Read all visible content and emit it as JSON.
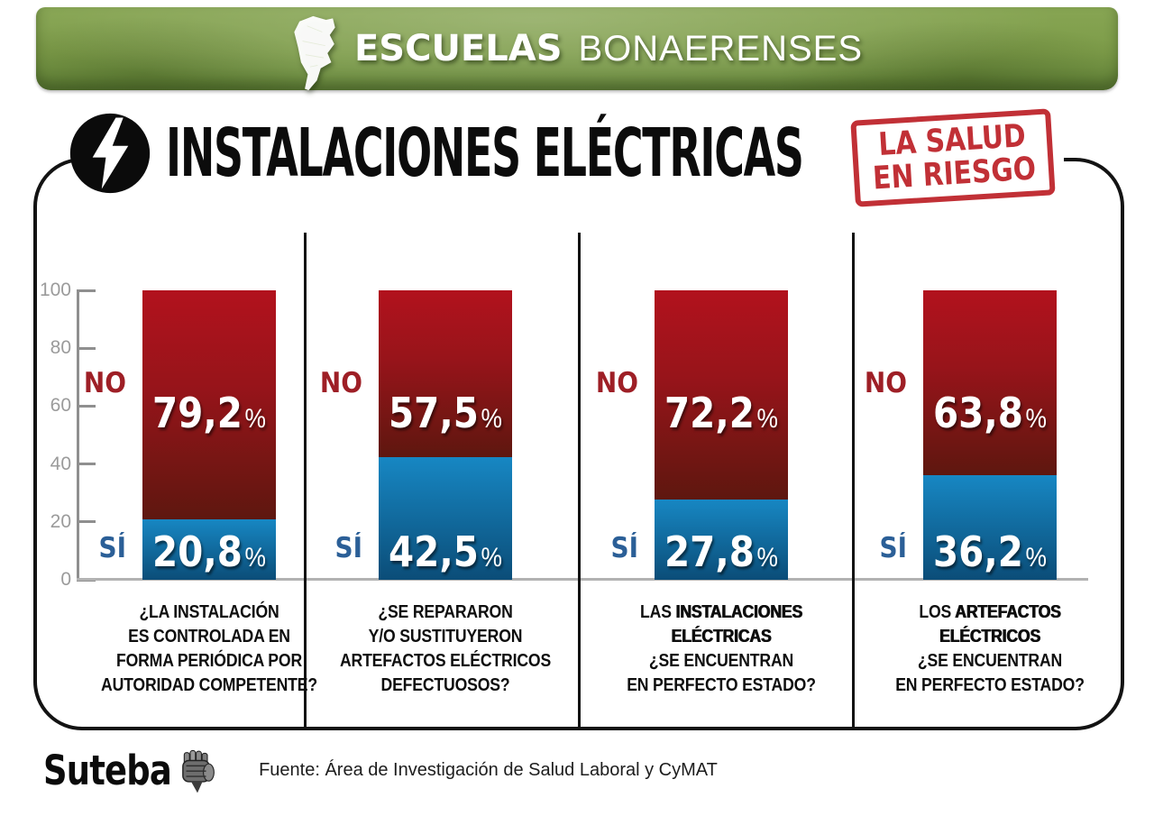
{
  "header": {
    "brand_bold": "ESCUELAS",
    "brand_regular": "BONAERENSES",
    "map_icon": "buenos-aires-province-icon",
    "bg_color": "#7d9c49"
  },
  "title": {
    "icon": "lightning-bolt-icon",
    "text": "INSTALACIONES ELÉCTRICAS"
  },
  "stamp": {
    "line1": "LA SALUD",
    "line2": "EN RIESGO",
    "color": "#bf2a30"
  },
  "chart_data": {
    "type": "bar",
    "stacked": true,
    "orientation": "vertical",
    "ylim": [
      0,
      100
    ],
    "yticks": [
      0,
      20,
      40,
      60,
      80,
      100
    ],
    "grid": false,
    "legend_position": "beside-bars",
    "percent_sign": "%",
    "series_labels": {
      "no": "NO",
      "si": "SÍ"
    },
    "colors": {
      "no_top": "#b2121d",
      "no_bottom": "#5e170f",
      "no_label": "#9e1f26",
      "si_top": "#1787c3",
      "si_bottom": "#0b4d78",
      "si_label": "#2b5f97",
      "axis": "#8f8f8f",
      "tick_text": "#9b9b9b",
      "divider": "#131313"
    },
    "bars": [
      {
        "no": 79.2,
        "si": 20.8,
        "no_display": "79,2",
        "si_display": "20,8",
        "question": [
          [
            [
              "¿LA INSTALACIÓN",
              false
            ]
          ],
          [
            [
              "ES CONTROLADA EN",
              false
            ]
          ],
          [
            [
              "FORMA PERIÓDICA POR",
              false
            ]
          ],
          [
            [
              "AUTORIDAD COMPETENTE?",
              false
            ]
          ]
        ]
      },
      {
        "no": 57.5,
        "si": 42.5,
        "no_display": "57,5",
        "si_display": "42,5",
        "question": [
          [
            [
              "¿SE REPARARON",
              false
            ]
          ],
          [
            [
              "Y/O SUSTITUYERON",
              false
            ]
          ],
          [
            [
              "ARTEFACTOS ELÉCTRICOS",
              false
            ]
          ],
          [
            [
              "DEFECTUOSOS?",
              false
            ]
          ]
        ]
      },
      {
        "no": 72.2,
        "si": 27.8,
        "no_display": "72,2",
        "si_display": "27,8",
        "question": [
          [
            [
              "LAS ",
              false
            ],
            [
              "INSTALACIONES",
              true
            ]
          ],
          [
            [
              "ELÉCTRICAS",
              true
            ]
          ],
          [
            [
              "¿SE ENCUENTRAN",
              false
            ]
          ],
          [
            [
              "EN PERFECTO ESTADO?",
              false
            ]
          ]
        ]
      },
      {
        "no": 63.8,
        "si": 36.2,
        "no_display": "63,8",
        "si_display": "36,2",
        "question": [
          [
            [
              "LOS ",
              false
            ],
            [
              "ARTEFACTOS",
              true
            ]
          ],
          [
            [
              "ELÉCTRICOS",
              true
            ]
          ],
          [
            [
              "¿SE ENCUENTRAN",
              false
            ]
          ],
          [
            [
              "EN PERFECTO ESTADO?",
              false
            ]
          ]
        ]
      }
    ]
  },
  "footer": {
    "logo_text": "Suteba",
    "logo_icon": "fist-icon",
    "source": "Fuente: Área de Investigación de Salud Laboral y CyMAT"
  }
}
